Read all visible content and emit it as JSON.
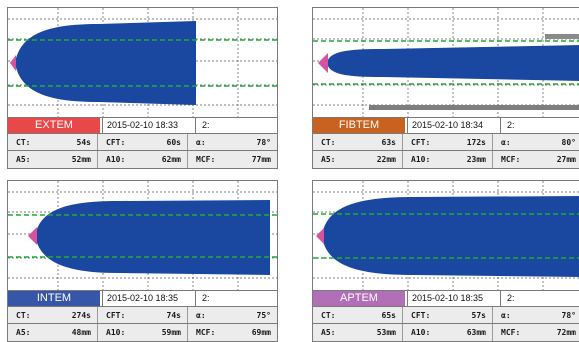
{
  "panels": [
    {
      "label": "EXTEM",
      "label_color": "#e8484a",
      "date": "2015-02-10 18:33",
      "slot": "2:",
      "ct_label": "CT:",
      "ct": "54s",
      "cft_label": "CFT:",
      "cft": "60s",
      "alpha_label": "α:",
      "alpha": "78°",
      "a5_label": "A5:",
      "a5": "52mm",
      "a10_label": "A10:",
      "a10": "62mm",
      "mcf_label": "MCF:",
      "mcf": "77mm",
      "trace": "wide",
      "trace_color": "#1a47a0",
      "clot_start_color": "#d6529e"
    },
    {
      "label": "FIBTEM",
      "label_color": "#c8621e",
      "date": "2015-02-10 18:34",
      "slot": "2:",
      "ct_label": "CT:",
      "ct": "63s",
      "cft_label": "CFT:",
      "cft": "172s",
      "alpha_label": "α:",
      "alpha": "80°",
      "a5_label": "A5:",
      "a5": "22mm",
      "a10_label": "A10:",
      "a10": "23mm",
      "mcf_label": "MCF:",
      "mcf": "27mm",
      "trace": "narrow",
      "trace_color": "#1a47a0",
      "clot_start_color": "#d6529e"
    },
    {
      "label": "INTEM",
      "label_color": "#3657a8",
      "date": "2015-02-10 18:35",
      "slot": "2:",
      "ct_label": "CT:",
      "ct": "274s",
      "cft_label": "CFT:",
      "cft": "74s",
      "alpha_label": "α:",
      "alpha": "75°",
      "a5_label": "A5:",
      "a5": "48mm",
      "a10_label": "A10:",
      "a10": "59mm",
      "mcf_label": "MCF:",
      "mcf": "69mm",
      "trace": "wide",
      "trace_color": "#1a47a0",
      "clot_start_color": "#d6529e"
    },
    {
      "label": "APTEM",
      "label_color": "#b06fb6",
      "date": "2015-02-10 18:35",
      "slot": "2:",
      "ct_label": "CT:",
      "ct": "65s",
      "cft_label": "CFT:",
      "cft": "57s",
      "alpha_label": "α:",
      "alpha": "78°",
      "a5_label": "A5:",
      "a5": "53mm",
      "a10_label": "A10:",
      "a10": "63mm",
      "mcf_label": "MCF:",
      "mcf": "72mm",
      "trace": "wide",
      "trace_color": "#1a47a0",
      "clot_start_color": "#d6529e"
    }
  ],
  "grid_color": "#555555",
  "reference_line_color": "#22aa33"
}
